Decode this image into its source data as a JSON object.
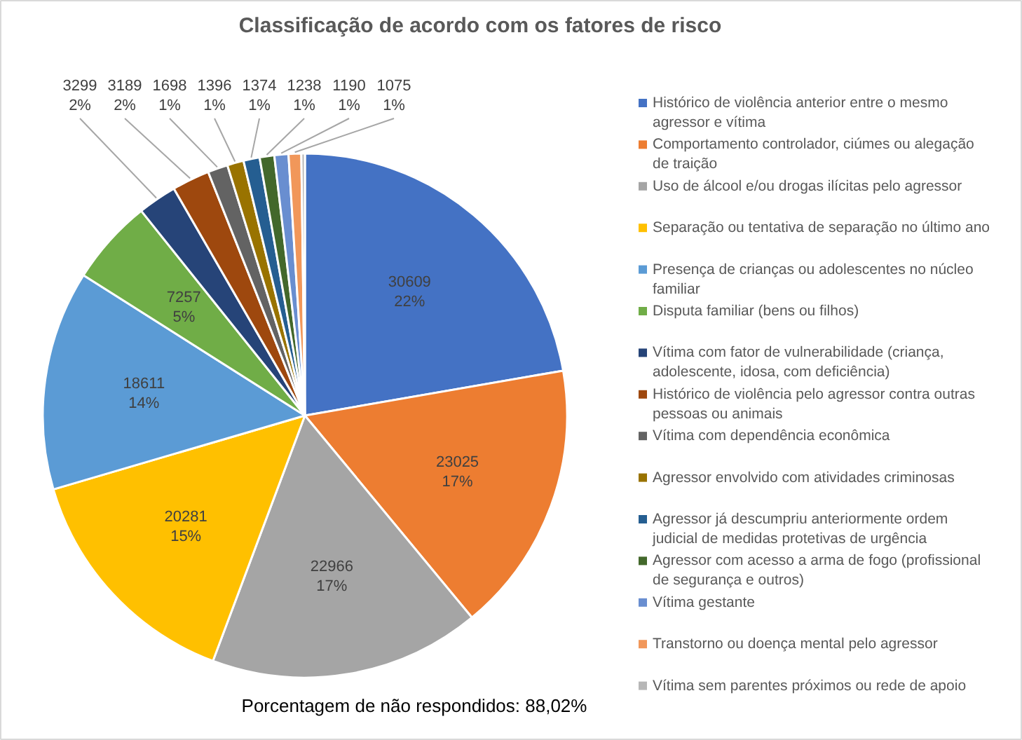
{
  "chart_data": {
    "type": "pie",
    "title": "Classificação de acordo com os fatores de risco",
    "categories": [
      "Histórico de violência anterior entre o mesmo agressor e vítima",
      "Comportamento controlador, ciúmes ou alegação de traição",
      "Uso de álcool e/ou drogas ilícitas pelo agressor",
      "Separação ou tentativa de separação no último ano",
      "Presença de crianças ou adolescentes no núcleo familiar",
      "Disputa familiar (bens ou filhos)",
      "Vítima com fator de vulnerabilidade (criança, adolescente, idosa, com deficiência)",
      "Histórico de violência pelo agressor contra outras pessoas ou animais",
      "Vítima com dependência econômica",
      "Agressor envolvido com atividades criminosas",
      "Agressor já descumpriu anteriormente ordem judicial de medidas protetivas de urgência",
      "Agressor com acesso a arma de fogo (profissional de segurança e outros)",
      "Vítima gestante",
      "Transtorno ou doença mental pelo agressor",
      "Vítima sem parentes próximos ou rede de apoio"
    ],
    "values": [
      30609,
      23025,
      22966,
      20281,
      18611,
      7257,
      3299,
      3189,
      1698,
      1396,
      1374,
      1238,
      1190,
      1075,
      300
    ],
    "colors": [
      "#4472c4",
      "#ed7d31",
      "#a5a5a5",
      "#ffc000",
      "#5b9bd5",
      "#70ad47",
      "#264478",
      "#9e480e",
      "#636363",
      "#997300",
      "#255e91",
      "#43682b",
      "#698ed0",
      "#f1975a",
      "#b7b7b7"
    ],
    "value_labels": [
      "30609\n22%",
      "23025\n17%",
      "22966\n17%",
      "20281\n15%",
      "18611\n14%",
      "7257\n5%",
      "3299\n2%",
      "3189\n2%",
      "1698\n1%",
      "1396\n1%",
      "1374\n1%",
      "1238\n1%",
      "1190\n1%",
      "1075\n1%",
      null
    ],
    "legend": "right",
    "annotations": [
      "Porcentagem de não respondidos: 88,02%"
    ]
  }
}
